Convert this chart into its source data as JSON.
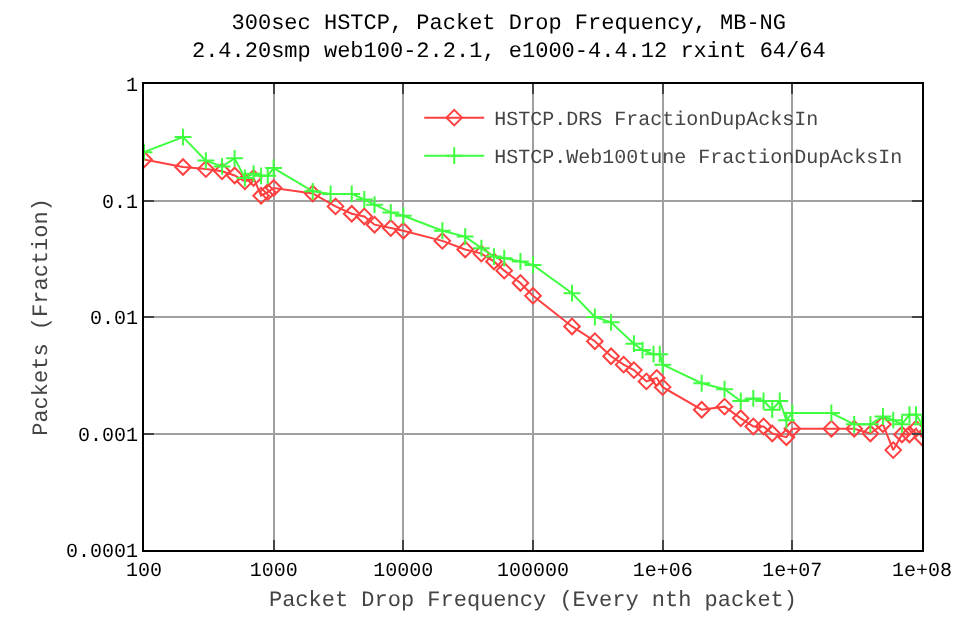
{
  "chart_data": {
    "type": "line",
    "title": "300sec HSTCP, Packet Drop Frequency, MB-NG",
    "subtitle": "2.4.20smp web100-2.2.1, e1000-4.4.12 rxint 64/64",
    "xlabel": "Packet Drop Frequency (Every nth packet)",
    "ylabel": "Packets (Fraction)",
    "log": "xy",
    "grid": true,
    "legend": "top right",
    "line_style": "solid",
    "xlim": [
      100,
      100000000
    ],
    "ylim": [
      0.0001,
      1
    ],
    "xticks": [
      100,
      1000,
      10000,
      100000,
      {
        "value": 1000000,
        "label": "1e+06"
      },
      {
        "value": 10000000,
        "label": "1e+07"
      },
      {
        "value": 100000000,
        "label": "1e+08"
      }
    ],
    "yticks": [
      0.0001,
      0.001,
      0.01,
      0.1,
      1
    ],
    "series": [
      {
        "name": "HSTCP.DRS FractionDupAcksIn",
        "color": "#ff4040",
        "marker": "diamond",
        "x": [
          100,
          200,
          300,
          400,
          500,
          600,
          700,
          800,
          900,
          1000,
          2000,
          3000,
          4000,
          5000,
          6000,
          8000,
          10000,
          20000,
          30000,
          40000,
          50000,
          60000,
          80000,
          100000,
          200000,
          300000,
          400000,
          500000,
          600000,
          750000,
          900000,
          1000000,
          2000000,
          3000000,
          4000000,
          5000000,
          6000000,
          7000000,
          9000000,
          10000000,
          20000000,
          30000000,
          40000000,
          50000000,
          60000000,
          70000000,
          80000000,
          90000000,
          100000000
        ],
        "values": [
          0.225,
          0.194,
          0.186,
          0.178,
          0.164,
          0.146,
          0.156,
          0.11,
          0.118,
          0.128,
          0.115,
          0.089,
          0.077,
          0.073,
          0.062,
          0.058,
          0.055,
          0.045,
          0.038,
          0.035,
          0.03,
          0.025,
          0.0196,
          0.0152,
          0.0083,
          0.0062,
          0.0046,
          0.0039,
          0.0035,
          0.0028,
          0.003,
          0.0025,
          0.0016,
          0.0017,
          0.00135,
          0.00115,
          0.00115,
          0.001,
          0.00093,
          0.0011,
          0.0011,
          0.0011,
          0.001,
          0.0012,
          0.00072,
          0.00098,
          0.00098,
          0.0011,
          0.00093
        ]
      },
      {
        "name": "HSTCP.Web100tune FractionDupAcksIn",
        "color": "#40ff40",
        "marker": "cross",
        "x": [
          100,
          200,
          300,
          400,
          500,
          600,
          700,
          800,
          900,
          1000,
          2000,
          2750,
          4000,
          5000,
          6000,
          8000,
          10000,
          20000,
          30000,
          40000,
          50000,
          60000,
          80000,
          100000,
          200000,
          300000,
          400000,
          600000,
          700000,
          850000,
          950000,
          1000000,
          2000000,
          3000000,
          4000000,
          5000000,
          6000000,
          7000000,
          8000000,
          9000000,
          10000000,
          20000000,
          30000000,
          40000000,
          50000000,
          60000000,
          70000000,
          80000000,
          90000000,
          100000000
        ],
        "values": [
          0.26,
          0.35,
          0.22,
          0.196,
          0.23,
          0.156,
          0.17,
          0.163,
          0.163,
          0.19,
          0.12,
          0.114,
          0.114,
          0.102,
          0.092,
          0.079,
          0.074,
          0.055,
          0.049,
          0.039,
          0.033,
          0.032,
          0.03,
          0.028,
          0.016,
          0.01,
          0.009,
          0.0059,
          0.0052,
          0.0048,
          0.0048,
          0.0039,
          0.0027,
          0.0024,
          0.0019,
          0.002,
          0.0019,
          0.0016,
          0.0019,
          0.0013,
          0.0015,
          0.0015,
          0.0012,
          0.0012,
          0.0014,
          0.0013,
          0.0012,
          0.00145,
          0.00145,
          0.0012
        ]
      }
    ]
  }
}
